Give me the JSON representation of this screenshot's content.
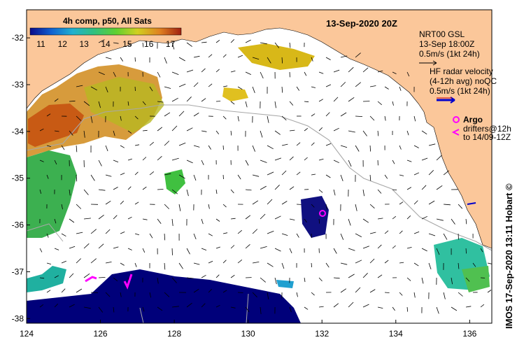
{
  "title": "13-Sep-2020 20Z",
  "credit": "IMOS 17-Sep-2020 13:11 Hobart",
  "credit_symbol": "©",
  "colorbar": {
    "label": "4h comp, p50, All Sats",
    "ticks": [
      "11",
      "12",
      "13",
      "14",
      "15",
      "16",
      "17"
    ],
    "range": [
      10.5,
      17.5
    ],
    "colors": [
      "#0a0a8a",
      "#1060d0",
      "#20b0d0",
      "#30c080",
      "#60d030",
      "#d0d020",
      "#e08020",
      "#a02010"
    ]
  },
  "axes": {
    "x_ticks": [
      "124",
      "126",
      "128",
      "130",
      "132",
      "134",
      "136"
    ],
    "y_ticks": [
      "-32",
      "-33",
      "-34",
      "-35",
      "-36",
      "-37",
      "-38"
    ],
    "lon_range": [
      124,
      136.6
    ],
    "lat_range": [
      -38.1,
      -31.4
    ]
  },
  "legend": {
    "model_label": "NRT00 GSL",
    "model_time": "13-Sep 18:00Z",
    "model_scale": "0.5m/s (1kt 24h)",
    "hf_line1": "HF radar velocity",
    "hf_line2": "(4-12h avg) noQC",
    "hf_scale": "0.5m/s (1kt 24h)",
    "argo_label": "Argo",
    "drifters_line1": "drifters@12h",
    "drifters_line2": "to 14/09-12Z"
  },
  "colors": {
    "land": "#fbc79a",
    "ocean": "#ffffff",
    "argo": "#ff00ff",
    "hf_arrow": "#0000cc",
    "cold_patch": "#00007a"
  }
}
